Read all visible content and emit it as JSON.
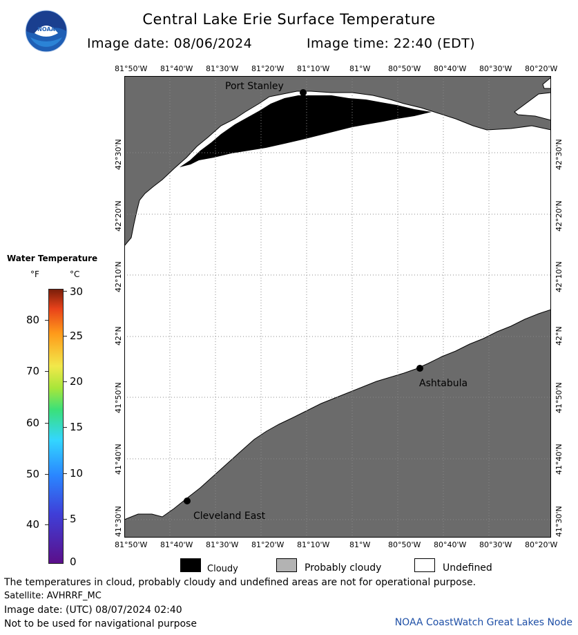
{
  "header": {
    "title": "Central Lake Erie Surface Temperature",
    "image_date": "Image date: 08/06/2024",
    "image_time": "Image time: 22:40 (EDT)"
  },
  "logo": {
    "text": "NOAA",
    "icon": "noaa-logo-icon"
  },
  "map": {
    "lon_labels": [
      "81°50'W",
      "81°40'W",
      "81°30'W",
      "81°20'W",
      "81°10'W",
      "81°W",
      "80°50'W",
      "80°40'W",
      "80°30'W",
      "80°20'W"
    ],
    "lat_labels": [
      "42°30'N",
      "42°20'N",
      "42°10'N",
      "42°N",
      "41°50'N",
      "41°40'N",
      "41°30'N"
    ],
    "places": {
      "port_stanley": "Port Stanley",
      "ashtabula": "Ashtabula",
      "cleveland_east": "Cleveland East"
    },
    "colors": {
      "land": "#6b6b6b",
      "water_undefined": "#ffffff",
      "cloudy": "#000000",
      "grid": "#8a8a8a"
    }
  },
  "legend": {
    "title": "Water Temperature",
    "unit_f": "°F",
    "unit_c": "°C",
    "f_ticks": [
      "80",
      "70",
      "60",
      "50",
      "40"
    ],
    "c_ticks": [
      "30",
      "25",
      "20",
      "15",
      "10",
      "5",
      "0"
    ]
  },
  "key": {
    "cloudy": "Cloudy",
    "probably_cloudy": "Probably cloudy",
    "undefined": "Undefined"
  },
  "footer": {
    "note": "The temperatures in cloud, probably cloudy and undefined areas are not for operational purpose.",
    "satellite": "Satellite: AVHRRF_MC",
    "utc_date": "Image date: (UTC) 08/07/2024  02:40",
    "nav_warning": "Not to be used for navigational purpose",
    "credit": "NOAA CoastWatch Great Lakes Node"
  }
}
